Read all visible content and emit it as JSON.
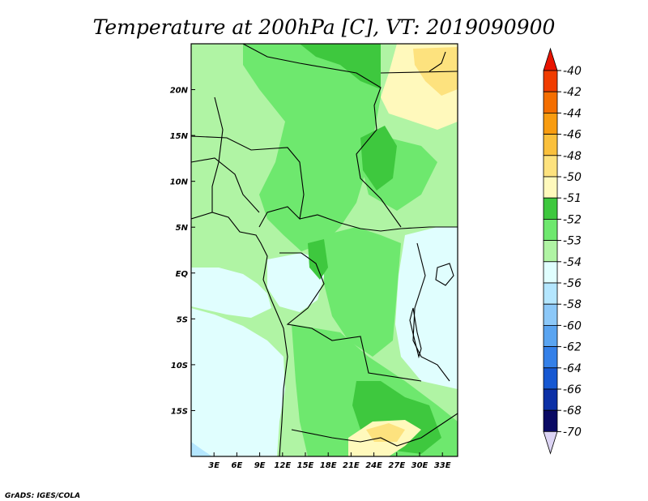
{
  "title": "Temperature at 200hPa [C], VT: 2019090900",
  "credit": "GrADS: IGES/COLA",
  "map": {
    "lon_range": [
      0,
      35
    ],
    "lat_range": [
      -20,
      25
    ],
    "lon_ticks": [
      "3E",
      "6E",
      "9E",
      "12E",
      "15E",
      "18E",
      "21E",
      "24E",
      "27E",
      "30E",
      "33E"
    ],
    "lat_ticks": [
      "20N",
      "15N",
      "10N",
      "5N",
      "EQ",
      "5S",
      "10S",
      "15S"
    ]
  },
  "colorbar": {
    "labels": [
      "-40",
      "-42",
      "-44",
      "-46",
      "-48",
      "-50",
      "-51",
      "-52",
      "-53",
      "-54",
      "-56",
      "-58",
      "-60",
      "-62",
      "-64",
      "-66",
      "-68",
      "-70"
    ],
    "colors": [
      "#f01800",
      "#f03c00",
      "#f46e00",
      "#f89c10",
      "#fac03c",
      "#fde27e",
      "#fff9bc",
      "#3ec83e",
      "#6ee86e",
      "#b0f4a4",
      "#e0fefe",
      "#b4e6fe",
      "#8cc8f8",
      "#5aa4f0",
      "#3480e8",
      "#1658d2",
      "#0c30a6",
      "#0a0a64"
    ],
    "over_color": "#e81400",
    "under_color": "#dcd4f4"
  },
  "regions": {
    "sea_lightblue": "#e0fefe",
    "sea_blue": "#b4e6fe",
    "green_light": "#b0f4a4",
    "green_mid": "#6ee86e",
    "green_dark": "#3ec83e",
    "yellow_pale": "#fff9bc",
    "yellow": "#fde27e"
  }
}
